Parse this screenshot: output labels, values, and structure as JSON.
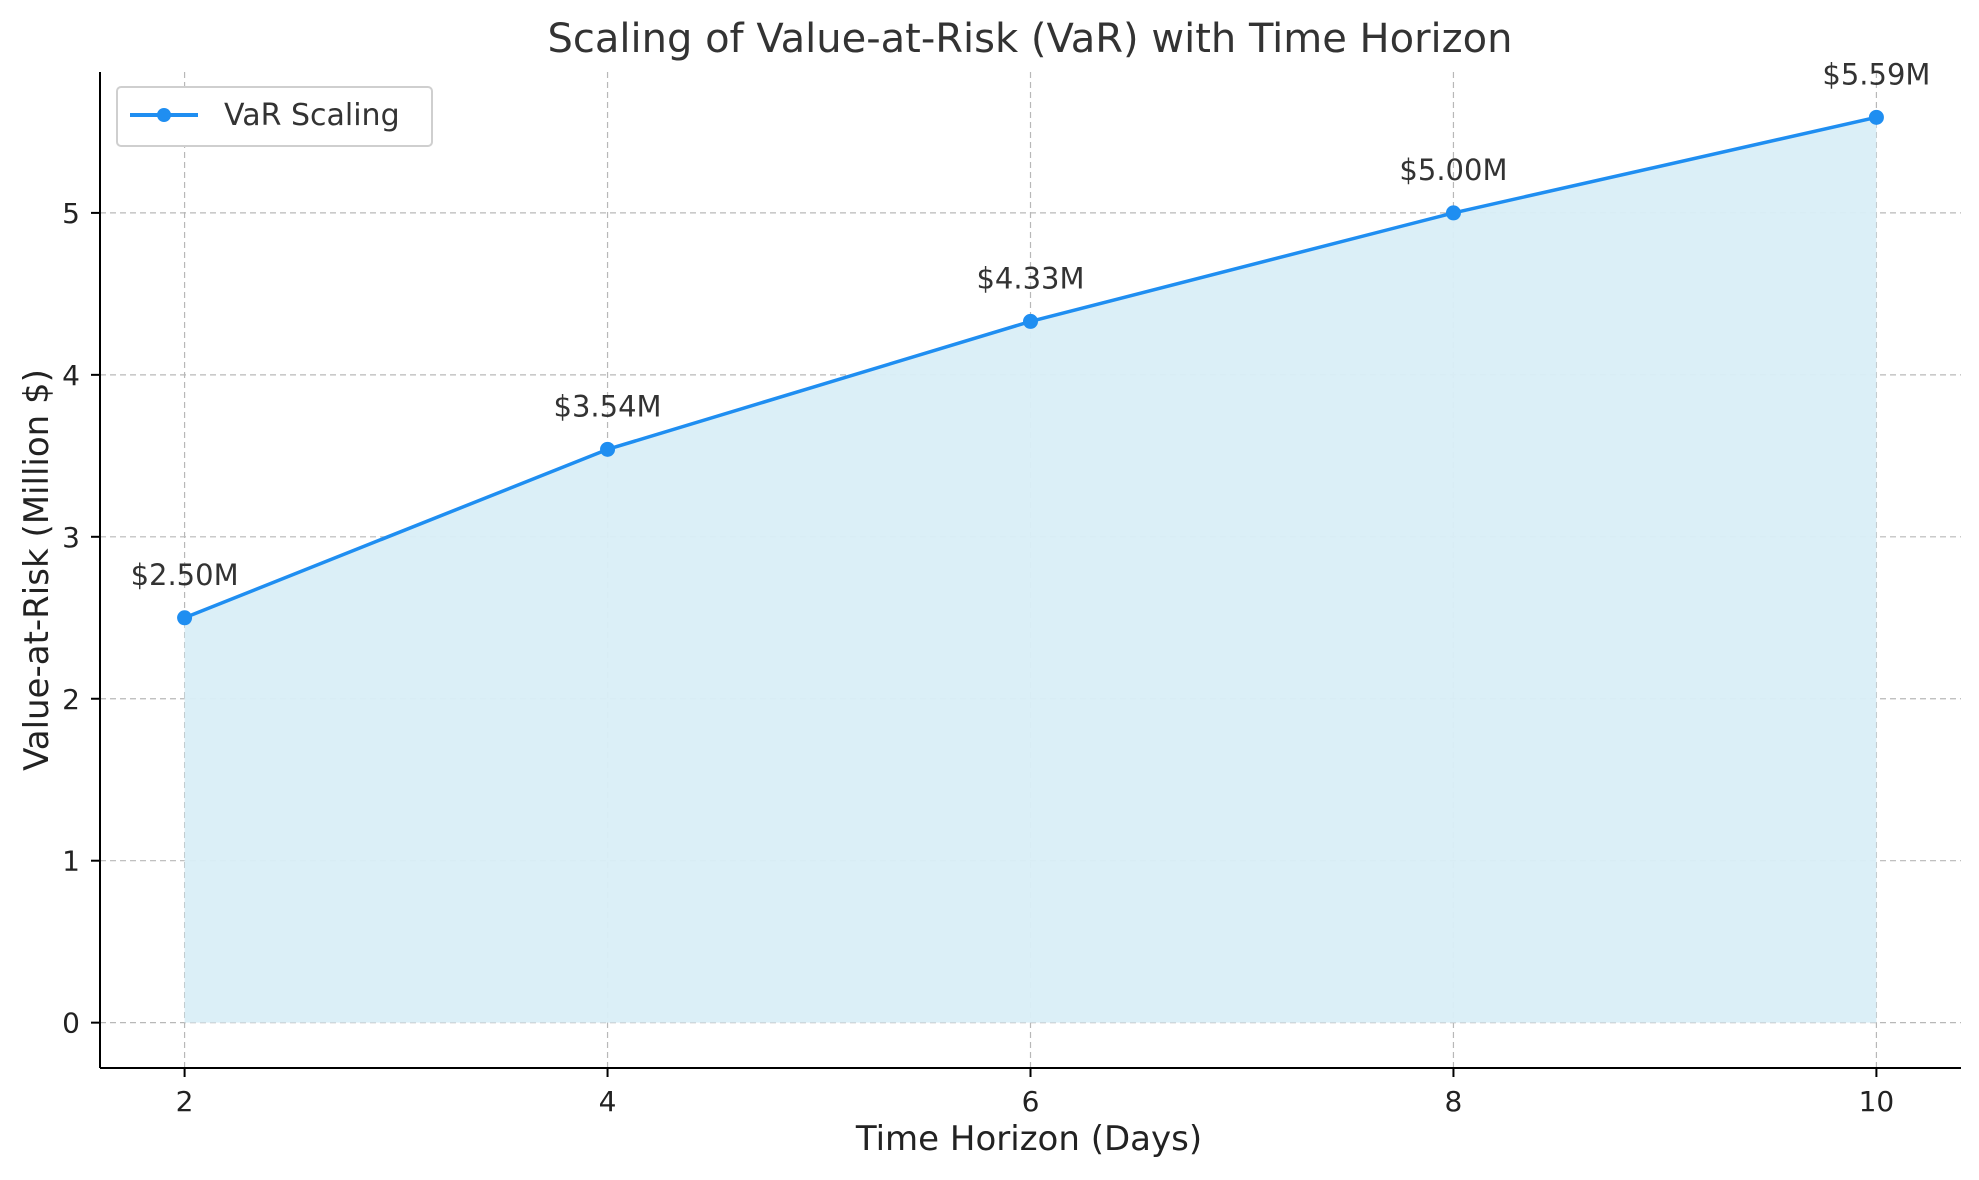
{
  "chart_data": {
    "type": "line",
    "title": "Scaling of Value-at-Risk (VaR) with Time Horizon",
    "xlabel": "Time Horizon (Days)",
    "ylabel": "Value-at-Risk (Million $)",
    "x": [
      2,
      4,
      6,
      8,
      10
    ],
    "xticks": [
      2,
      4,
      6,
      8,
      10
    ],
    "yticks": [
      0,
      1,
      2,
      3,
      4,
      5
    ],
    "xlim": [
      1.6,
      10.4
    ],
    "ylim": [
      -0.28,
      5.87
    ],
    "grid": true,
    "legend_position": "top-left",
    "area_fill": true,
    "colors": {
      "line": "#1f8ef1",
      "fill": "#d9eef7",
      "grid": "#b8b8b8",
      "axis": "#000000"
    },
    "series": [
      {
        "name": "VaR Scaling",
        "values": [
          2.5,
          3.54,
          4.33,
          5.0,
          5.59
        ],
        "labels": [
          "$2.50M",
          "$3.54M",
          "$4.33M",
          "$5.00M",
          "$5.59M"
        ]
      }
    ]
  }
}
